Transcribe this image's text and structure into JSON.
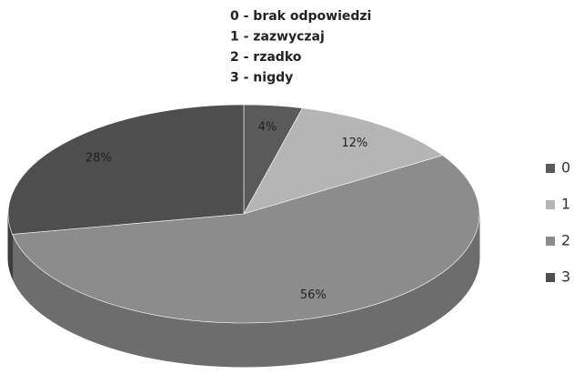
{
  "chart_data": {
    "type": "pie3d",
    "annotations": [
      "0 - brak odpowiedzi",
      "1 - zazwyczaj",
      "2 - rzadko",
      "3 - nigdy"
    ],
    "categories": [
      "0",
      "1",
      "2",
      "3"
    ],
    "values": [
      4,
      12,
      56,
      28
    ],
    "value_labels": [
      "4%",
      "12%",
      "56%",
      "28%"
    ],
    "colors": [
      "#5a5a5a",
      "#b5b5b5",
      "#8c8c8c",
      "#4e4e4e"
    ],
    "legend": "right"
  }
}
